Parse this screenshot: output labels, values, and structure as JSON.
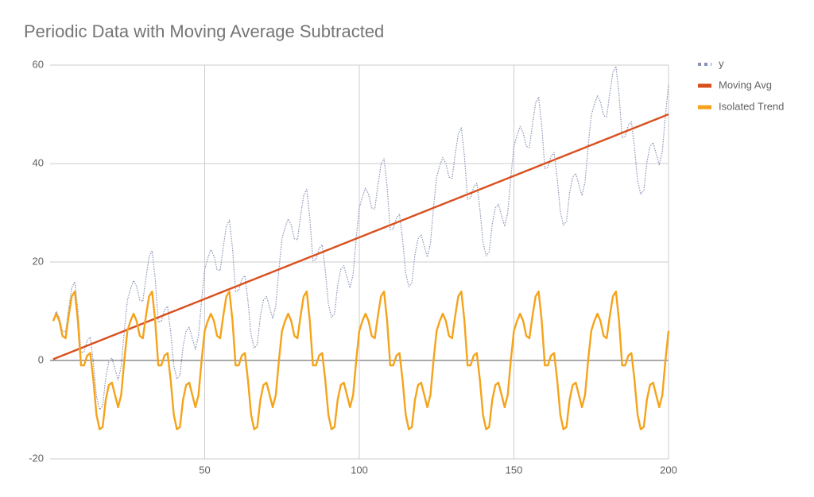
{
  "chart_data": {
    "type": "line",
    "title": "Periodic Data with Moving Average Subtracted",
    "x": [
      1,
      2,
      3,
      4,
      5,
      6,
      7,
      8,
      9,
      10,
      11,
      12,
      13,
      14,
      15,
      16,
      17,
      18,
      19,
      20,
      21,
      22,
      23,
      24,
      25,
      26,
      27,
      28,
      29,
      30,
      31,
      32,
      33,
      34,
      35,
      36,
      37,
      38,
      39,
      40,
      41,
      42,
      43,
      44,
      45,
      46,
      47,
      48,
      49,
      50,
      51,
      52,
      53,
      54,
      55,
      56,
      57,
      58,
      59,
      60,
      61,
      62,
      63,
      64,
      65,
      66,
      67,
      68,
      69,
      70,
      71,
      72,
      73,
      74,
      75,
      76,
      77,
      78,
      79,
      80,
      81,
      82,
      83,
      84,
      85,
      86,
      87,
      88,
      89,
      90,
      91,
      92,
      93,
      94,
      95,
      96,
      97,
      98,
      99,
      100,
      101,
      102,
      103,
      104,
      105,
      106,
      107,
      108,
      109,
      110,
      111,
      112,
      113,
      114,
      115,
      116,
      117,
      118,
      119,
      120,
      121,
      122,
      123,
      124,
      125,
      126,
      127,
      128,
      129,
      130,
      131,
      132,
      133,
      134,
      135,
      136,
      137,
      138,
      139,
      140,
      141,
      142,
      143,
      144,
      145,
      146,
      147,
      148,
      149,
      150,
      151,
      152,
      153,
      154,
      155,
      156,
      157,
      158,
      159,
      160,
      161,
      162,
      163,
      164,
      165,
      166,
      167,
      168,
      169,
      170,
      171,
      172,
      173,
      174,
      175,
      176,
      177,
      178,
      179,
      180,
      181,
      182,
      183,
      184,
      185,
      186,
      187,
      188,
      189,
      190,
      191,
      192,
      193,
      194,
      195,
      196,
      197,
      198,
      199,
      200
    ],
    "series": [
      {
        "name": "y",
        "color": "#8a93b5",
        "line_style": "dotted",
        "values": [
          8.25,
          10,
          8.75,
          6,
          5.75,
          10.5,
          14.75,
          16,
          10.25,
          1.5,
          1.75,
          4,
          4.75,
          -0.5,
          -7.25,
          -10,
          -9.25,
          -3.5,
          -0.25,
          0.5,
          -1.75,
          -4,
          -1.25,
          6,
          12.25,
          14.5,
          16.25,
          15,
          12.25,
          12,
          16.75,
          21,
          22.25,
          16.5,
          7.75,
          8,
          10.25,
          11,
          5.75,
          -1,
          -3.75,
          -3,
          2.75,
          6,
          6.75,
          4.5,
          2.25,
          5,
          12.25,
          18.5,
          20.75,
          22.5,
          21.25,
          18.5,
          18.25,
          23,
          27.25,
          28.5,
          22.75,
          14,
          14.25,
          16.5,
          17.25,
          12,
          5.25,
          2.5,
          3.25,
          9,
          12.25,
          13,
          10.75,
          8.5,
          11.25,
          18.5,
          24.75,
          27,
          28.75,
          27.5,
          24.75,
          24.5,
          29.25,
          33.5,
          34.75,
          29,
          20.25,
          20.5,
          22.75,
          23.5,
          18.25,
          11.5,
          8.75,
          9.5,
          15.25,
          18.5,
          19.25,
          17,
          14.75,
          17.5,
          24.75,
          31,
          33.25,
          35,
          33.75,
          31,
          30.75,
          35.5,
          39.75,
          41,
          35.25,
          26.5,
          26.75,
          29,
          29.75,
          24.5,
          17.75,
          15,
          15.75,
          21.5,
          24.75,
          25.5,
          23.25,
          21,
          23.75,
          31,
          37.25,
          39.5,
          41.25,
          40,
          37.25,
          37,
          41.75,
          46,
          47.25,
          41.5,
          32.75,
          33,
          35.25,
          36,
          30.75,
          24,
          21.25,
          22,
          27.75,
          31,
          31.75,
          29.5,
          27.25,
          30,
          37.25,
          43.5,
          45.75,
          47.5,
          46.25,
          43.5,
          43.25,
          48,
          52.25,
          53.5,
          47.75,
          39,
          39.25,
          41.5,
          42.25,
          37,
          30.25,
          27.5,
          28.25,
          34,
          37.25,
          38,
          35.75,
          33.5,
          36.25,
          43.5,
          49.75,
          52,
          53.75,
          52.5,
          49.75,
          49.5,
          54.25,
          58.5,
          59.75,
          54,
          45.25,
          45.5,
          47.75,
          48.5,
          43.25,
          36.5,
          33.75,
          34.5,
          40.25,
          43.5,
          44.25,
          42,
          39.75,
          42.5,
          49.75,
          56
        ]
      },
      {
        "name": "Moving Avg",
        "color": "#d9501f",
        "line_style": "solid",
        "values": [
          0.25,
          0.5,
          0.75,
          1,
          1.25,
          1.5,
          1.75,
          2,
          2.25,
          2.5,
          2.75,
          3,
          3.25,
          3.5,
          3.75,
          4,
          4.25,
          4.5,
          4.75,
          5,
          5.25,
          5.5,
          5.75,
          6,
          6.25,
          6.5,
          6.75,
          7,
          7.25,
          7.5,
          7.75,
          8,
          8.25,
          8.5,
          8.75,
          9,
          9.25,
          9.5,
          9.75,
          10,
          10.25,
          10.5,
          10.75,
          11,
          11.25,
          11.5,
          11.75,
          12,
          12.25,
          12.5,
          12.75,
          13,
          13.25,
          13.5,
          13.75,
          14,
          14.25,
          14.5,
          14.75,
          15,
          15.25,
          15.5,
          15.75,
          16,
          16.25,
          16.5,
          16.75,
          17,
          17.25,
          17.5,
          17.75,
          18,
          18.25,
          18.5,
          18.75,
          19,
          19.25,
          19.5,
          19.75,
          20,
          20.25,
          20.5,
          20.75,
          21,
          21.25,
          21.5,
          21.75,
          22,
          22.25,
          22.5,
          22.75,
          23,
          23.25,
          23.5,
          23.75,
          24,
          24.25,
          24.5,
          24.75,
          25,
          25.25,
          25.5,
          25.75,
          26,
          26.25,
          26.5,
          26.75,
          27,
          27.25,
          27.5,
          27.75,
          28,
          28.25,
          28.5,
          28.75,
          29,
          29.25,
          29.5,
          29.75,
          30,
          30.25,
          30.5,
          30.75,
          31,
          31.25,
          31.5,
          31.75,
          32,
          32.25,
          32.5,
          32.75,
          33,
          33.25,
          33.5,
          33.75,
          34,
          34.25,
          34.5,
          34.75,
          35,
          35.25,
          35.5,
          35.75,
          36,
          36.25,
          36.5,
          36.75,
          37,
          37.25,
          37.5,
          37.75,
          38,
          38.25,
          38.5,
          38.75,
          39,
          39.25,
          39.5,
          39.75,
          40,
          40.25,
          40.5,
          40.75,
          41,
          41.25,
          41.5,
          41.75,
          42,
          42.25,
          42.5,
          42.75,
          43,
          43.25,
          43.5,
          43.75,
          44,
          44.25,
          44.5,
          44.75,
          45,
          45.25,
          45.5,
          45.75,
          46,
          46.25,
          46.5,
          46.75,
          47,
          47.25,
          47.5,
          47.75,
          48,
          48.25,
          48.5,
          48.75,
          49,
          49.25,
          49.5,
          49.75,
          50
        ]
      },
      {
        "name": "Isolated Trend",
        "color": "#f5a31a",
        "line_style": "solid",
        "values": [
          8,
          9.5,
          8,
          5,
          4.5,
          9,
          13,
          14,
          8,
          -1,
          -1,
          1,
          1.5,
          -4,
          -11,
          -14,
          -13.5,
          -8,
          -5,
          -4.5,
          -7,
          -9.5,
          -7,
          0,
          6,
          8,
          9.5,
          8,
          5,
          4.5,
          9,
          13,
          14,
          8,
          -1,
          -1,
          1,
          1.5,
          -4,
          -11,
          -14,
          -13.5,
          -8,
          -5,
          -4.5,
          -7,
          -9.5,
          -7,
          0,
          6,
          8,
          9.5,
          8,
          5,
          4.5,
          9,
          13,
          14,
          8,
          -1,
          -1,
          1,
          1.5,
          -4,
          -11,
          -14,
          -13.5,
          -8,
          -5,
          -4.5,
          -7,
          -9.5,
          -7,
          0,
          6,
          8,
          9.5,
          8,
          5,
          4.5,
          9,
          13,
          14,
          8,
          -1,
          -1,
          1,
          1.5,
          -4,
          -11,
          -14,
          -13.5,
          -8,
          -5,
          -4.5,
          -7,
          -9.5,
          -7,
          0,
          6,
          8,
          9.5,
          8,
          5,
          4.5,
          9,
          13,
          14,
          8,
          -1,
          -1,
          1,
          1.5,
          -4,
          -11,
          -14,
          -13.5,
          -8,
          -5,
          -4.5,
          -7,
          -9.5,
          -7,
          0,
          6,
          8,
          9.5,
          8,
          5,
          4.5,
          9,
          13,
          14,
          8,
          -1,
          -1,
          1,
          1.5,
          -4,
          -11,
          -14,
          -13.5,
          -8,
          -5,
          -4.5,
          -7,
          -9.5,
          -7,
          0,
          6,
          8,
          9.5,
          8,
          5,
          4.5,
          9,
          13,
          14,
          8,
          -1,
          -1,
          1,
          1.5,
          -4,
          -11,
          -14,
          -13.5,
          -8,
          -5,
          -4.5,
          -7,
          -9.5,
          -7,
          0,
          6,
          8,
          9.5,
          8,
          5,
          4.5,
          9,
          13,
          14,
          8,
          -1,
          -1,
          1,
          1.5,
          -4,
          -11,
          -14,
          -13.5,
          -8,
          -5,
          -4.5,
          -7,
          -9.5,
          -7,
          0,
          6
        ]
      }
    ],
    "xlim": [
      0,
      200
    ],
    "xticks": [
      50,
      100,
      150,
      200
    ],
    "ylim": [
      -20,
      60
    ],
    "yticks": [
      -20,
      0,
      20,
      40,
      60
    ],
    "grid": true,
    "legend": "right"
  }
}
